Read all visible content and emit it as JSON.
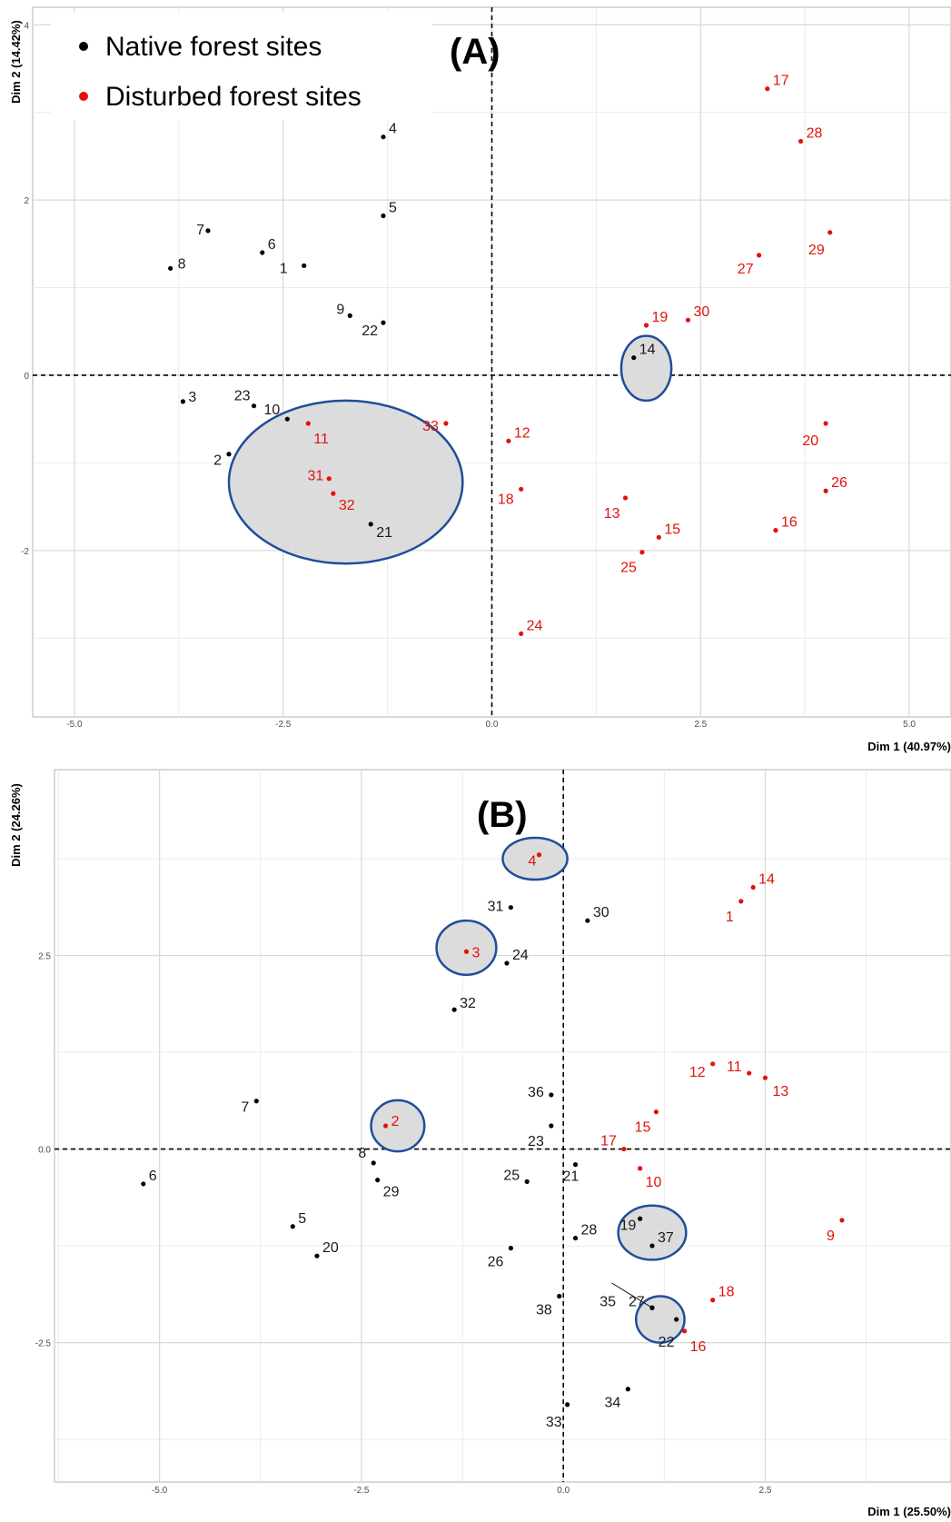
{
  "colors": {
    "native": "#000000",
    "disturbed": "#e3120b",
    "ellipse_stroke": "#1f4e9a",
    "ellipse_fill": "#dcdcdc"
  },
  "legend": {
    "native_label": "Native forest sites",
    "disturbed_label": "Disturbed forest sites"
  },
  "chart_data": [
    {
      "type": "scatter",
      "panel_label": "(A)",
      "xlabel": "Dim 1 (40.97%)",
      "ylabel": "Dim 2 (14.42%)",
      "xlim": [
        -5.5,
        5.5
      ],
      "ylim": [
        -3.9,
        4.2
      ],
      "x_ticks": [
        -5,
        -2.5,
        0,
        2.5,
        5
      ],
      "x_tick_labels": [
        "-5.0",
        "-2.5",
        "0.0",
        "2.5",
        "5.0"
      ],
      "y_ticks": [
        -2,
        0,
        2,
        4
      ],
      "y_tick_labels": [
        "-2",
        "0",
        "2",
        "4"
      ],
      "grid": true,
      "legend_position": "top-left",
      "reference_lines": {
        "x": 0,
        "y": 0
      },
      "series": [
        {
          "name": "Native forest sites",
          "points": [
            {
              "label": "1",
              "x": -2.25,
              "y": 1.25
            },
            {
              "label": "2",
              "x": -3.15,
              "y": -0.9
            },
            {
              "label": "3",
              "x": -3.7,
              "y": -0.3
            },
            {
              "label": "4",
              "x": -1.3,
              "y": 2.72
            },
            {
              "label": "5",
              "x": -1.3,
              "y": 1.82
            },
            {
              "label": "6",
              "x": -2.75,
              "y": 1.4
            },
            {
              "label": "7",
              "x": -3.4,
              "y": 1.65
            },
            {
              "label": "8",
              "x": -3.85,
              "y": 1.22
            },
            {
              "label": "9",
              "x": -1.7,
              "y": 0.68
            },
            {
              "label": "10",
              "x": -2.45,
              "y": -0.5
            },
            {
              "label": "14",
              "x": 1.7,
              "y": 0.2
            },
            {
              "label": "21",
              "x": -1.45,
              "y": -1.7
            },
            {
              "label": "22",
              "x": -1.3,
              "y": 0.6
            },
            {
              "label": "23",
              "x": -2.85,
              "y": -0.35
            }
          ]
        },
        {
          "name": "Disturbed forest sites",
          "points": [
            {
              "label": "11",
              "x": -2.2,
              "y": -0.55
            },
            {
              "label": "12",
              "x": 0.2,
              "y": -0.75
            },
            {
              "label": "13",
              "x": 1.6,
              "y": -1.4
            },
            {
              "label": "15",
              "x": 2.0,
              "y": -1.85
            },
            {
              "label": "16",
              "x": 3.4,
              "y": -1.77
            },
            {
              "label": "17",
              "x": 3.3,
              "y": 3.27
            },
            {
              "label": "18",
              "x": 0.35,
              "y": -1.3
            },
            {
              "label": "19",
              "x": 1.85,
              "y": 0.57
            },
            {
              "label": "20",
              "x": 4.0,
              "y": -0.55
            },
            {
              "label": "24",
              "x": 0.35,
              "y": -2.95
            },
            {
              "label": "25",
              "x": 1.8,
              "y": -2.02
            },
            {
              "label": "26",
              "x": 4.0,
              "y": -1.32
            },
            {
              "label": "27",
              "x": 3.2,
              "y": 1.37
            },
            {
              "label": "28",
              "x": 3.7,
              "y": 2.67
            },
            {
              "label": "29",
              "x": 4.05,
              "y": 1.63
            },
            {
              "label": "30",
              "x": 2.35,
              "y": 0.63
            },
            {
              "label": "31",
              "x": -1.95,
              "y": -1.18
            },
            {
              "label": "32",
              "x": -1.9,
              "y": -1.35
            },
            {
              "label": "33",
              "x": -0.55,
              "y": -0.55
            }
          ]
        }
      ],
      "ellipses": [
        {
          "cx": -1.75,
          "cy": -1.22,
          "rx": 1.4,
          "ry": 0.93
        },
        {
          "cx": 1.85,
          "cy": 0.08,
          "rx": 0.3,
          "ry": 0.37
        }
      ]
    },
    {
      "type": "scatter",
      "panel_label": "(B)",
      "xlabel": "Dim 1 (25.50%)",
      "ylabel": "Dim 2 (24.26%)",
      "xlim": [
        -6.3,
        4.8
      ],
      "ylim": [
        -4.3,
        4.9
      ],
      "x_ticks": [
        -5,
        -2.5,
        0,
        2.5
      ],
      "x_tick_labels": [
        "-5.0",
        "-2.5",
        "0.0",
        "2.5"
      ],
      "y_ticks": [
        -2.5,
        0,
        2.5
      ],
      "y_tick_labels": [
        "-2.5",
        "0.0",
        "2.5"
      ],
      "grid": true,
      "reference_lines": {
        "x": 0,
        "y": 0
      },
      "series": [
        {
          "name": "Native forest sites",
          "points": [
            {
              "label": "5",
              "x": -3.35,
              "y": -1.0
            },
            {
              "label": "6",
              "x": -5.2,
              "y": -0.45
            },
            {
              "label": "7",
              "x": -3.8,
              "y": 0.62
            },
            {
              "label": "8",
              "x": -2.35,
              "y": -0.18
            },
            {
              "label": "19",
              "x": 0.95,
              "y": -0.9
            },
            {
              "label": "20",
              "x": -3.05,
              "y": -1.38
            },
            {
              "label": "21",
              "x": 0.15,
              "y": -0.2
            },
            {
              "label": "22",
              "x": 1.4,
              "y": -2.2
            },
            {
              "label": "23",
              "x": -0.15,
              "y": 0.3
            },
            {
              "label": "24",
              "x": -0.7,
              "y": 2.4
            },
            {
              "label": "25",
              "x": -0.45,
              "y": -0.42
            },
            {
              "label": "26",
              "x": -0.65,
              "y": -1.28
            },
            {
              "label": "27",
              "x": 1.1,
              "y": -2.05
            },
            {
              "label": "28",
              "x": 0.15,
              "y": -1.15
            },
            {
              "label": "29",
              "x": -2.3,
              "y": -0.4
            },
            {
              "label": "30",
              "x": 0.3,
              "y": 2.95
            },
            {
              "label": "31",
              "x": -0.65,
              "y": 3.12
            },
            {
              "label": "32",
              "x": -1.35,
              "y": 1.8
            },
            {
              "label": "33",
              "x": 0.05,
              "y": -3.3
            },
            {
              "label": "34",
              "x": 0.8,
              "y": -3.1
            },
            {
              "label": "35",
              "x": 1.1,
              "y": -2.05
            },
            {
              "label": "36",
              "x": -0.15,
              "y": 0.7
            },
            {
              "label": "37",
              "x": 1.1,
              "y": -1.25
            },
            {
              "label": "38",
              "x": -0.05,
              "y": -1.9
            }
          ]
        },
        {
          "name": "Disturbed forest sites",
          "points": [
            {
              "label": "1",
              "x": 2.2,
              "y": 3.2
            },
            {
              "label": "2",
              "x": -2.2,
              "y": 0.3
            },
            {
              "label": "3",
              "x": -1.2,
              "y": 2.55
            },
            {
              "label": "4",
              "x": -0.3,
              "y": 3.8
            },
            {
              "label": "9",
              "x": 3.45,
              "y": -0.92
            },
            {
              "label": "10",
              "x": 0.95,
              "y": -0.25
            },
            {
              "label": "11",
              "x": 2.3,
              "y": 0.98
            },
            {
              "label": "12",
              "x": 1.85,
              "y": 1.1
            },
            {
              "label": "13",
              "x": 2.5,
              "y": 0.92
            },
            {
              "label": "14",
              "x": 2.35,
              "y": 3.38
            },
            {
              "label": "15",
              "x": 1.15,
              "y": 0.48
            },
            {
              "label": "16",
              "x": 1.5,
              "y": -2.35
            },
            {
              "label": "17",
              "x": 0.75,
              "y": 0.0
            },
            {
              "label": "18",
              "x": 1.85,
              "y": -1.95
            }
          ]
        }
      ],
      "ellipses": [
        {
          "cx": -0.35,
          "cy": 3.75,
          "rx": 0.4,
          "ry": 0.27
        },
        {
          "cx": -1.2,
          "cy": 2.6,
          "rx": 0.37,
          "ry": 0.35
        },
        {
          "cx": -2.05,
          "cy": 0.3,
          "rx": 0.33,
          "ry": 0.33
        },
        {
          "cx": 1.1,
          "cy": -1.08,
          "rx": 0.42,
          "ry": 0.35
        },
        {
          "cx": 1.2,
          "cy": -2.2,
          "rx": 0.3,
          "ry": 0.3
        }
      ],
      "connectors": [
        {
          "from_x": 0.6,
          "from_y": -1.73,
          "to_x": 1.1,
          "to_y": -2.05
        }
      ]
    }
  ]
}
